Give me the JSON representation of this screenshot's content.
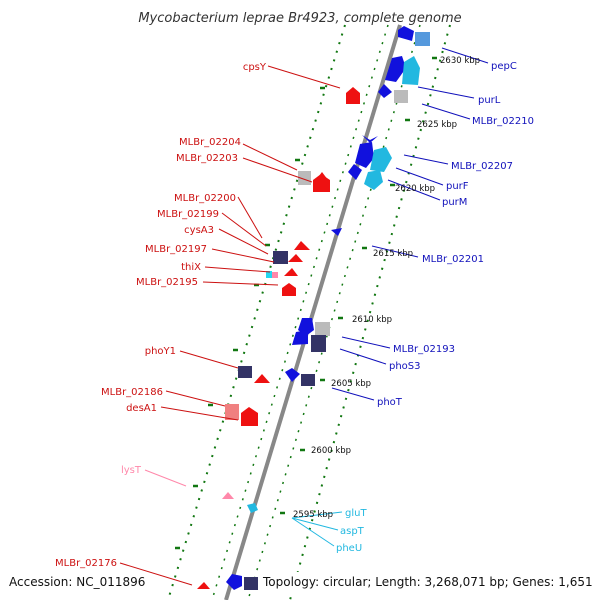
{
  "title": "Mycobacterium leprae Br4923, complete genome",
  "footer": {
    "accession": "Accession: NC_011896",
    "summary": "Topology: circular; Length: 3,268,071 bp; Genes: 1,651"
  },
  "colors": {
    "reverse_strand": "#ee1111",
    "forward_strand": "#1111dd",
    "forward_light": "#22b8e0",
    "navy_box": "#333366",
    "grey_box": "#bbbbbb",
    "pink": "#ff88aa",
    "backbone": "#888888",
    "tick_marks": "#117711"
  },
  "ticks": [
    "2630 kbp",
    "2625 kbp",
    "2620 kbp",
    "2615 kbp",
    "2610 kbp",
    "2605 kbp",
    "2600 kbp",
    "2595 kbp"
  ],
  "left_labels": [
    {
      "text": "cpsY",
      "color": "#cc1111"
    },
    {
      "text": "MLBr_02204",
      "color": "#cc1111"
    },
    {
      "text": "MLBr_02203",
      "color": "#cc1111"
    },
    {
      "text": "MLBr_02200",
      "color": "#cc1111"
    },
    {
      "text": "MLBr_02199",
      "color": "#cc1111"
    },
    {
      "text": "cysA3",
      "color": "#cc1111"
    },
    {
      "text": "MLBr_02197",
      "color": "#cc1111"
    },
    {
      "text": "thiX",
      "color": "#cc1111"
    },
    {
      "text": "MLBr_02195",
      "color": "#cc1111"
    },
    {
      "text": "phoY1",
      "color": "#cc1111"
    },
    {
      "text": "MLBr_02186",
      "color": "#cc1111"
    },
    {
      "text": "desA1",
      "color": "#cc1111"
    },
    {
      "text": "lysT",
      "color": "#ff88aa"
    },
    {
      "text": "MLBr_02176",
      "color": "#cc1111"
    }
  ],
  "right_labels": [
    {
      "text": "pepC",
      "color": "#1111bb"
    },
    {
      "text": "purL",
      "color": "#1111bb"
    },
    {
      "text": "MLBr_02210",
      "color": "#1111bb"
    },
    {
      "text": "MLBr_02207",
      "color": "#1111bb"
    },
    {
      "text": "purF",
      "color": "#1111bb"
    },
    {
      "text": "purM",
      "color": "#1111bb"
    },
    {
      "text": "MLBr_02201",
      "color": "#1111bb"
    },
    {
      "text": "MLBr_02193",
      "color": "#1111bb"
    },
    {
      "text": "phoS3",
      "color": "#1111bb"
    },
    {
      "text": "phoT",
      "color": "#1111bb"
    },
    {
      "text": "gluT",
      "color": "#22b8e0"
    },
    {
      "text": "aspT",
      "color": "#22b8e0"
    },
    {
      "text": "pheU",
      "color": "#22b8e0"
    }
  ]
}
